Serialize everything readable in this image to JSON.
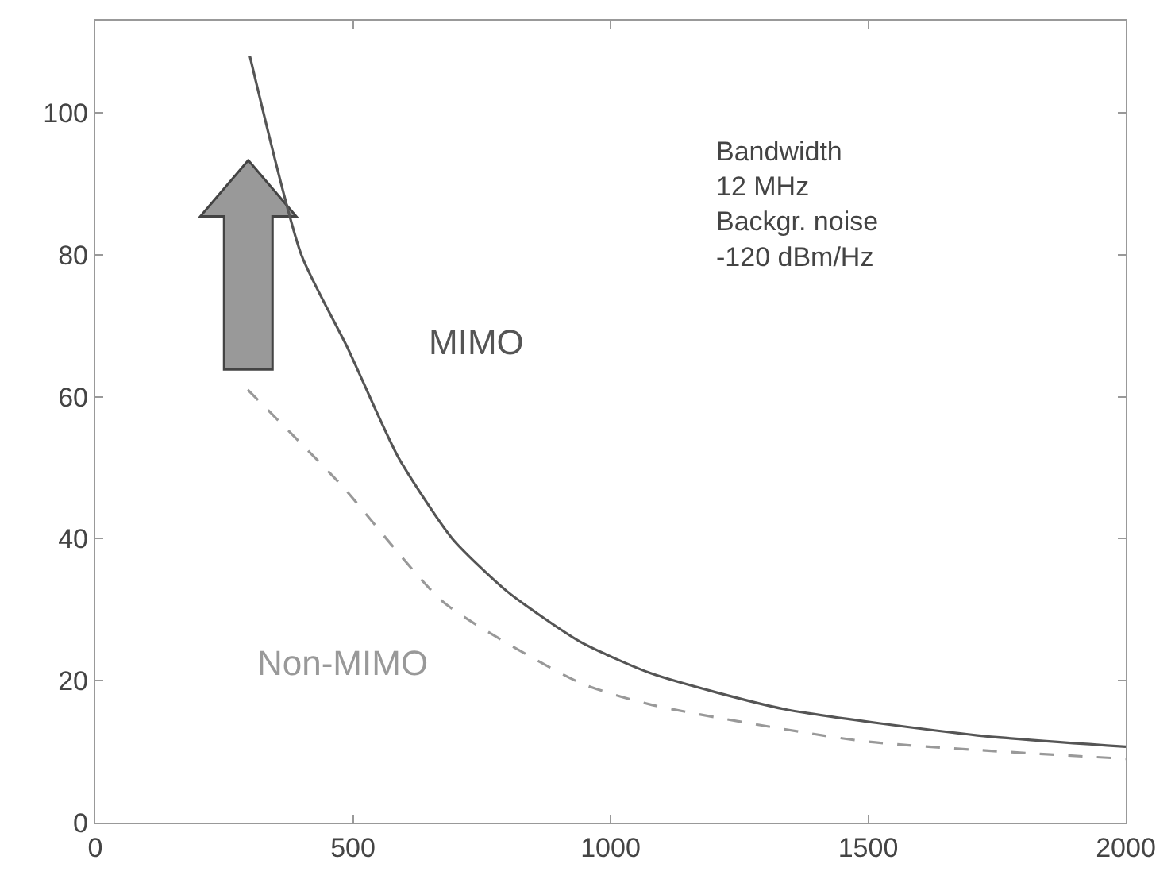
{
  "chart_data": {
    "type": "line",
    "xlim": [
      0,
      2000
    ],
    "xticks": [
      0,
      500,
      1000,
      1500,
      2000
    ],
    "ylim": [
      0,
      113
    ],
    "yticks": [
      0,
      20,
      40,
      60,
      80,
      100
    ],
    "legend": false,
    "marker": "none",
    "annotations": [
      "Bandwidth\n12 MHz\nBackgr. noise\n-120 dBm/Hz"
    ],
    "series": [
      {
        "name": "MIMO",
        "color": "#555555",
        "line_style": "solid",
        "x": [
          300,
          400,
          489,
          588,
          693,
          799,
          941,
          1080,
          1337,
          1712,
          2000
        ],
        "values": [
          108,
          80,
          67,
          51.5,
          40,
          32.6,
          25.5,
          21,
          16,
          12.3,
          10.7
        ]
      },
      {
        "name": "Non-MIMO",
        "color": "#999999",
        "line_style": "dashed",
        "x": [
          296,
          477,
          677,
          941,
          1080,
          1489,
          2000
        ],
        "values": [
          61,
          47.6,
          31,
          19.7,
          16.6,
          11.5,
          9
        ]
      }
    ]
  }
}
